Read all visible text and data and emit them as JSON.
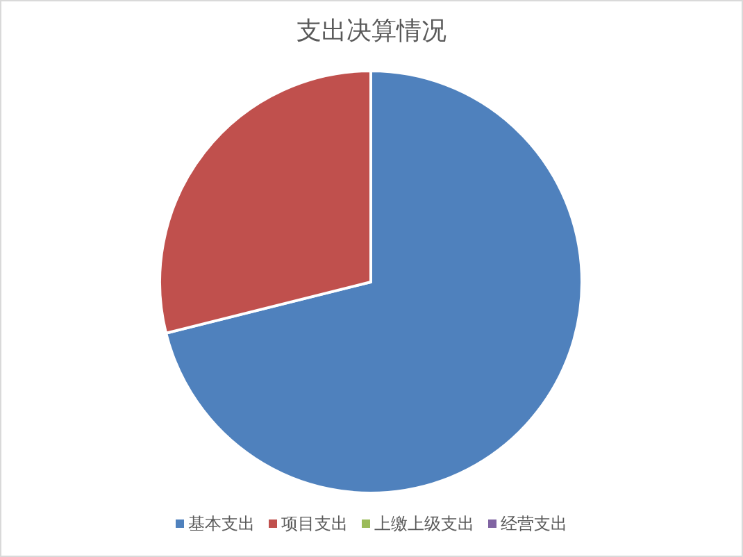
{
  "chart_data": {
    "type": "pie",
    "title": "支出决算情况",
    "categories": [
      "基本支出",
      "项目支出",
      "上缴上级支出",
      "经营支出"
    ],
    "values": [
      71.1,
      28.9,
      0,
      0
    ],
    "colors": [
      "#4f81bd",
      "#c0504d",
      "#9bbb59",
      "#8064a2"
    ],
    "legend": "bottom"
  }
}
